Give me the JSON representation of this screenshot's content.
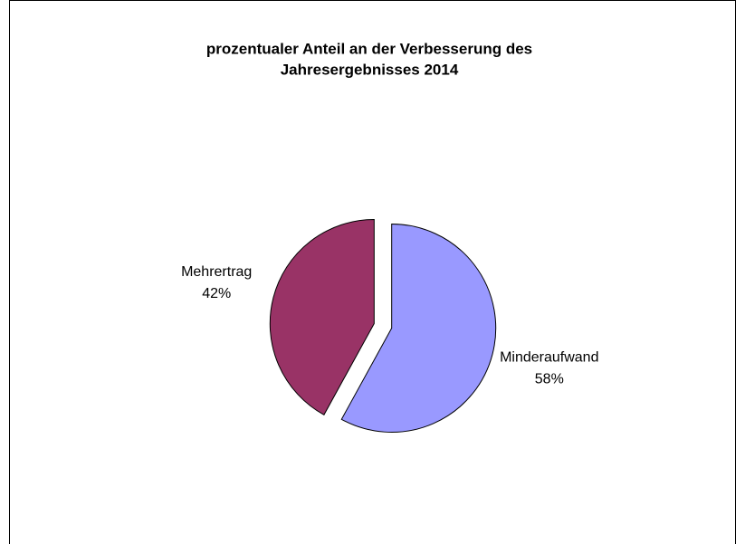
{
  "chart_data": {
    "type": "pie",
    "title": [
      "prozentualer Anteil an der Verbesserung des",
      "Jahresergebnisses 2014"
    ],
    "categories": [
      "Minderaufwand",
      "Mehrertrag"
    ],
    "values": [
      58,
      42
    ],
    "value_labels": [
      "58%",
      "42%"
    ],
    "colors": [
      "#9999ff",
      "#993366"
    ],
    "exploded": true
  }
}
